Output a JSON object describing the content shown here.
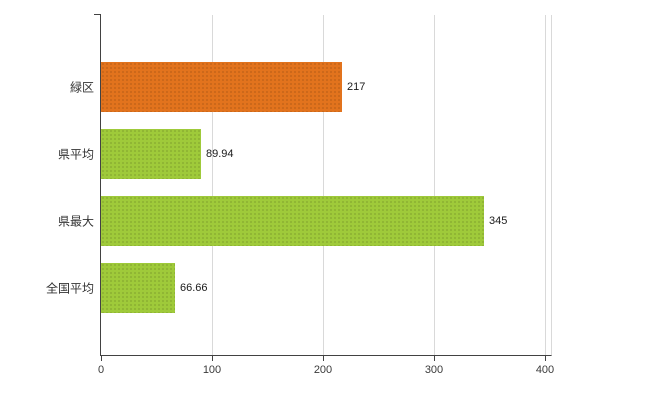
{
  "chart_data": {
    "type": "bar",
    "orientation": "horizontal",
    "title": "",
    "xlabel": "",
    "ylabel": "",
    "categories": [
      "緑区",
      "県平均",
      "県最大",
      "全国平均"
    ],
    "values": [
      217,
      89.94,
      345,
      66.66
    ],
    "value_labels": [
      "217",
      "89.94",
      "345",
      "66.66"
    ],
    "bar_colors": [
      "#e2731d",
      "#9fca3a",
      "#9fca3a",
      "#9fca3a"
    ],
    "xlim": [
      0,
      405
    ],
    "x_ticks": [
      0,
      100,
      200,
      300,
      400
    ],
    "grid": true,
    "legend": false
  },
  "colors": {
    "orange_bar": "#e2731d",
    "green_bar": "#9fca3a",
    "gridline": "#d9d9d9",
    "axis": "#424242",
    "label_text": "#333333",
    "background": "#ffffff"
  }
}
